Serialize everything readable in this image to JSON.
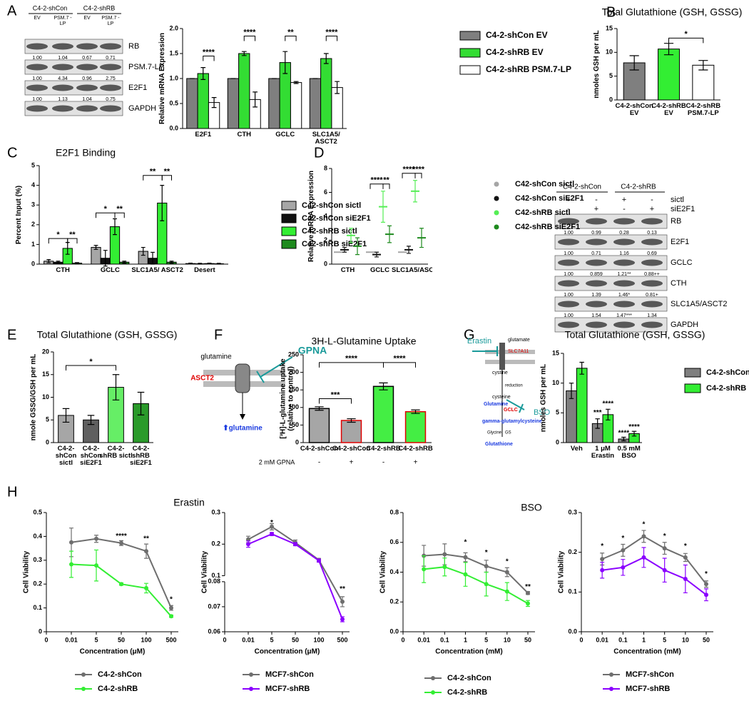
{
  "panel_labels": [
    "A",
    "B",
    "C",
    "D",
    "E",
    "F",
    "G",
    "H"
  ],
  "blot_a": {
    "groups": [
      "C4-2-shCon",
      "C4-2-shRB"
    ],
    "lanes": [
      "EV",
      "PSM.7 -LP",
      "EV",
      "PSM.7 -LP"
    ],
    "rows": [
      {
        "label": "RB",
        "quant": [
          "1.00",
          "1.04",
          "0.67",
          "0.71"
        ]
      },
      {
        "label": "PSM.7-LP",
        "quant": [
          "1.00",
          "4.34",
          "0.96",
          "2.75"
        ]
      },
      {
        "label": "E2F1",
        "quant": [
          "1.00",
          "1.13",
          "1.04",
          "0.75"
        ]
      },
      {
        "label": "GAPDH"
      }
    ]
  },
  "blot_d": {
    "groups": [
      "C4-2-shCon",
      "C4-2-shRB"
    ],
    "conditions": [
      {
        "label": "sictl",
        "marks": [
          "+",
          "-",
          "+",
          "-"
        ]
      },
      {
        "label": "siE2F1",
        "marks": [
          "-",
          "+",
          "-",
          "+"
        ]
      }
    ],
    "rows": [
      {
        "label": "RB",
        "quant": [
          "1.00",
          "0.99",
          "0.28",
          "0.13"
        ]
      },
      {
        "label": "E2F1",
        "quant": [
          "1.00",
          "0.71",
          "1.16",
          "0.69"
        ]
      },
      {
        "label": "GCLC",
        "quant": [
          "1.00",
          "0.859",
          "1.21**",
          "0.88++"
        ]
      },
      {
        "label": "CTH",
        "quant": [
          "1.00",
          "1.39",
          "1.46*",
          "0.81+"
        ]
      },
      {
        "label": "SLC1A5/ASCT2",
        "quant": [
          "1.00",
          "1.54",
          "1.47***",
          "1.34"
        ]
      },
      {
        "label": "GAPDH"
      }
    ]
  },
  "diagram_f": {
    "substrate": "glutamine",
    "transporter": "ASCT2",
    "inhibitor": "GPNA",
    "outcome": "⬆glutamine"
  },
  "diagram_g": {
    "inhibitor_1": "Erastin",
    "substrate": "glutamate",
    "transporter": "SLC7A11",
    "import": "cystine",
    "step": "reduction",
    "product_1": "cysteine",
    "input_1": "Glutamine",
    "enzyme_1": "GCLC",
    "inhibitor_2": "BSO",
    "product_2": "gamma-glutamylcysteine",
    "input_2": "Glycine",
    "enzyme_2": "GS",
    "product_3": "Glutathione"
  },
  "h_titles": [
    "Erastin",
    "BSO"
  ],
  "chart_data": [
    {
      "type": "bar",
      "ylabel": "Relative mRNA Expression",
      "categories": [
        "E2F1",
        "CTH",
        "GCLC",
        "SLC1A5/ ASCT2"
      ],
      "ylim": [
        0,
        2
      ],
      "yticks": [
        {
          "value": 0,
          "label": "0.0"
        },
        {
          "value": 0.5,
          "label": "0.5"
        },
        {
          "value": 1,
          "label": "1.0"
        },
        {
          "value": 1.5,
          "label": "1.5"
        },
        {
          "value": 2,
          "label": "2.0"
        }
      ],
      "series": [
        {
          "name": "C4-2-shCon EV",
          "color": "#7f7f7f",
          "values": [
            1,
            1,
            1,
            1
          ],
          "errors": [
            0,
            0,
            0,
            0
          ]
        },
        {
          "name": "C4-2-shRB EV",
          "color": "#33dd33",
          "values": [
            1.1,
            1.5,
            1.32,
            1.4
          ],
          "errors": [
            0.12,
            0.04,
            0.22,
            0.1
          ]
        },
        {
          "name": "C4-2-shRB PSM.7-LP",
          "color": "#ffffff",
          "values": [
            0.52,
            0.58,
            0.92,
            0.82
          ],
          "errors": [
            0.1,
            0.15,
            0.02,
            0.12
          ]
        }
      ],
      "annotations": [
        "****",
        "****",
        "**",
        "****"
      ]
    },
    {
      "type": "bar",
      "title": "Total Glutathione (GSH, GSSG)",
      "ylabel": "nmoles GSH per mL",
      "categories": [
        "C4-2-shCon EV",
        "C4-2-shRB EV",
        "C4-2-shRB PSM.7-LP"
      ],
      "values": [
        7.8,
        10.7,
        7.3
      ],
      "errors": [
        1.5,
        1.2,
        1.0
      ],
      "colors": [
        "#7f7f7f",
        "#33ee33",
        "#ffffff"
      ],
      "ylim": [
        0,
        15
      ],
      "yticks": [
        0,
        5,
        10,
        15
      ],
      "annotations": [
        "*"
      ]
    },
    {
      "type": "bar",
      "title": "E2F1 Binding",
      "ylabel": "Percent Input (%)",
      "categories": [
        "CTH",
        "GCLC",
        "SLC1A5/ ASCT2",
        "Desert"
      ],
      "ylim": [
        0,
        5
      ],
      "yticks": [
        0,
        1,
        2,
        3,
        4,
        5
      ],
      "series": [
        {
          "name": "C42-shCon sictl",
          "color": "#a6a6a6",
          "values": [
            0.15,
            0.85,
            0.65,
            0.03
          ],
          "errors": [
            0.08,
            0.1,
            0.2,
            0.02
          ]
        },
        {
          "name": "C42-shCon siE2F1",
          "color": "#111111",
          "values": [
            0.1,
            0.3,
            0.3,
            0.02
          ],
          "errors": [
            0.05,
            0.4,
            0.3,
            0.02
          ]
        },
        {
          "name": "C42-shRB sictl",
          "color": "#33ee33",
          "values": [
            0.8,
            1.9,
            3.1,
            0.03
          ],
          "errors": [
            0.3,
            0.4,
            0.9,
            0.02
          ]
        },
        {
          "name": "C42-shRB siE2F1",
          "color": "#1e8a1e",
          "values": [
            0.05,
            0.1,
            0.1,
            0.02
          ],
          "errors": [
            0.03,
            0.05,
            0.05,
            0.02
          ]
        }
      ],
      "annotations": [
        "*",
        "**",
        "*",
        "**",
        "**",
        "**"
      ]
    },
    {
      "type": "dot",
      "ylabel": "Relative mRNA Expression",
      "categories": [
        "CTH",
        "GCLC",
        "SLC1A5/ASCT2"
      ],
      "ylim": [
        0,
        8
      ],
      "yticks": [
        0,
        2,
        4,
        6,
        8
      ],
      "series": [
        {
          "name": "C42-shCon sictl",
          "color": "#a6a6a6",
          "values": [
            1,
            1,
            1
          ],
          "errors": [
            0,
            0,
            0
          ]
        },
        {
          "name": "C42-shCon siE2F1",
          "color": "#111111",
          "values": [
            1.2,
            0.8,
            1.2
          ],
          "errors": [
            0.2,
            0.2,
            0.3
          ]
        },
        {
          "name": "C42-shRB sictl",
          "color": "#55ee55",
          "values": [
            2.4,
            4.8,
            6.1
          ],
          "errors": [
            0.6,
            1.3,
            0.9
          ]
        },
        {
          "name": "C42-shRB siE2F1",
          "color": "#1e8a1e",
          "values": [
            1.5,
            2.5,
            2.2
          ],
          "errors": [
            0.7,
            0.7,
            0.8
          ]
        }
      ],
      "annotations": [
        "****",
        "**",
        "****",
        "****"
      ]
    },
    {
      "type": "bar",
      "title": "Total Glutathione (GSH, GSSG)",
      "ylabel": "nmole GSSG/GSH per mL",
      "categories": [
        "C4-2-shCon sictl",
        "C4-2-shCon siE2F1",
        "C4-2-shRB sictl",
        "C4-2-shRB siE2F1"
      ],
      "values": [
        6,
        5,
        12.2,
        8.6
      ],
      "errors": [
        1.5,
        1,
        2.8,
        2.5
      ],
      "colors": [
        "#a6a6a6",
        "#5f5f5f",
        "#66ee66",
        "#2a9a2a"
      ],
      "ylim": [
        0,
        20
      ],
      "yticks": [
        0,
        5,
        10,
        15,
        20
      ],
      "annotations": [
        "*"
      ]
    },
    {
      "type": "bar",
      "title": "3H-L-Glutamine Uptake",
      "ylabel": "[³H]-L-glutamine uptake (relative to control)",
      "categories": [
        "C4-2-shCon",
        "C4-2-shCon",
        "C4-2-shRB",
        "C4-2-shRB"
      ],
      "treatment_label": "2 mM GPNA",
      "treatment": [
        "-",
        "+",
        "-",
        "+"
      ],
      "values": [
        97,
        63,
        160,
        88
      ],
      "errors": [
        5,
        5,
        10,
        5
      ],
      "colors": [
        "#a6a6a6",
        "#a6a6a6",
        "#44ee44",
        "#44ee44"
      ],
      "edge_colors": [
        "#000000",
        "#e00000",
        "#000000",
        "#e00000"
      ],
      "ylim": [
        0,
        250
      ],
      "yticks": [
        0,
        50,
        100,
        150,
        200,
        250
      ],
      "annotations": [
        "***",
        "****",
        "****"
      ]
    },
    {
      "type": "bar",
      "title": "Total Glutathione (GSH, GSSG)",
      "ylabel": "nmoles GSH per mL",
      "categories": [
        "Veh",
        "1 μM Erastin",
        "0.5 mM BSO"
      ],
      "ylim": [
        0,
        15
      ],
      "yticks": [
        0,
        5,
        10,
        15
      ],
      "series": [
        {
          "name": "C4-2-shCon",
          "color": "#7f7f7f",
          "values": [
            8.7,
            3.2,
            0.6
          ],
          "errors": [
            1.3,
            0.8,
            0.3
          ]
        },
        {
          "name": "C4-2-shRB",
          "color": "#33ee33",
          "values": [
            12.5,
            4.7,
            1.5
          ],
          "errors": [
            1.0,
            0.9,
            0.4
          ]
        }
      ],
      "annotations": [
        "***",
        "****",
        "****",
        "****"
      ]
    },
    {
      "type": "line",
      "ylabel": "Cell Viability",
      "xlabel": "Concentration (μM)",
      "categories": [
        "0",
        "0.01",
        "5",
        "50",
        "100",
        "500"
      ],
      "ylim": [
        0,
        0.5
      ],
      "yticks": [
        0,
        0.1,
        0.2,
        0.3,
        0.4,
        0.5
      ],
      "series": [
        {
          "name": "C4-2-shCon",
          "color": "#6e6e6e",
          "values": [
            null,
            0.375,
            0.39,
            0.372,
            0.338,
            0.1
          ],
          "errors": [
            null,
            0.06,
            0.015,
            0.01,
            0.03,
            0.01
          ]
        },
        {
          "name": "C4-2-shRB",
          "color": "#33ee33",
          "values": [
            null,
            0.283,
            0.278,
            0.2,
            0.183,
            0.065
          ],
          "errors": [
            null,
            0.055,
            0.065,
            0.005,
            0.02,
            0.005
          ]
        }
      ],
      "annotations": [
        "****",
        "**",
        "*"
      ]
    },
    {
      "type": "line",
      "ylabel": "Cell Viability",
      "xlabel": "Concentration (μM)",
      "categories": [
        "0",
        "0.01",
        "5",
        "50",
        "100",
        "500"
      ],
      "ylim": [
        0.06,
        0.3
      ],
      "ybreak": [
        0.08,
        0.1
      ],
      "yticks": [
        0.06,
        0.07,
        0.08,
        0.1,
        0.2,
        0.3
      ],
      "series": [
        {
          "name": "MCF7-shCon",
          "color": "#6e6e6e",
          "values": [
            null,
            0.215,
            0.255,
            0.205,
            0.15,
            0.072
          ],
          "errors": [
            null,
            0.01,
            0.01,
            0.008,
            0.005,
            0.002
          ]
        },
        {
          "name": "MCF7-shRB",
          "color": "#8a00ff",
          "values": [
            null,
            0.2,
            0.232,
            0.2,
            0.148,
            0.065
          ],
          "errors": [
            null,
            0.01,
            0.005,
            0.005,
            0.005,
            0.001
          ]
        }
      ],
      "annotations": [
        "*",
        "**"
      ]
    },
    {
      "type": "line",
      "ylabel": "Cell Viability",
      "xlabel": "Concentration (mM)",
      "categories": [
        "0",
        "0.01",
        "0.1",
        "1",
        "5",
        "10",
        "50"
      ],
      "ylim": [
        0,
        0.8
      ],
      "yticks": [
        {
          "value": 0,
          "label": "0.0"
        },
        0.2,
        0.4,
        0.6,
        0.8
      ],
      "series": [
        {
          "name": "C4-2-shCon",
          "color": "#6e6e6e",
          "values": [
            null,
            0.51,
            0.52,
            0.5,
            0.44,
            0.4,
            0.26
          ],
          "errors": [
            null,
            0.07,
            0.07,
            0.03,
            0.04,
            0.03,
            0.01
          ]
        },
        {
          "name": "C4-2-shRB",
          "color": "#33ee33",
          "values": [
            null,
            0.42,
            0.435,
            0.385,
            0.32,
            0.27,
            0.19
          ],
          "errors": [
            null,
            0.09,
            0.06,
            0.08,
            0.08,
            0.06,
            0.02
          ]
        }
      ],
      "annotations": [
        "*",
        "*",
        "*",
        "**"
      ]
    },
    {
      "type": "line",
      "ylabel": "Cell Viability",
      "xlabel": "Concentration (mM)",
      "categories": [
        "0",
        "0.01",
        "0.1",
        "1",
        "5",
        "10",
        "50"
      ],
      "ylim": [
        0,
        0.3
      ],
      "yticks": [
        {
          "value": 0,
          "label": "0.0"
        },
        0.1,
        0.2,
        0.3
      ],
      "series": [
        {
          "name": "MCF7-shCon",
          "color": "#6e6e6e",
          "values": [
            null,
            0.183,
            0.205,
            0.24,
            0.21,
            0.187,
            0.12
          ],
          "errors": [
            null,
            0.015,
            0.015,
            0.015,
            0.015,
            0.01,
            0.008
          ]
        },
        {
          "name": "MCF7-shRB",
          "color": "#8a00ff",
          "values": [
            null,
            0.155,
            0.162,
            0.187,
            0.155,
            0.133,
            0.093
          ],
          "errors": [
            null,
            0.02,
            0.02,
            0.025,
            0.03,
            0.035,
            0.015
          ]
        }
      ],
      "annotations": [
        "*",
        "*",
        "*",
        "*",
        "*",
        "*"
      ]
    }
  ]
}
